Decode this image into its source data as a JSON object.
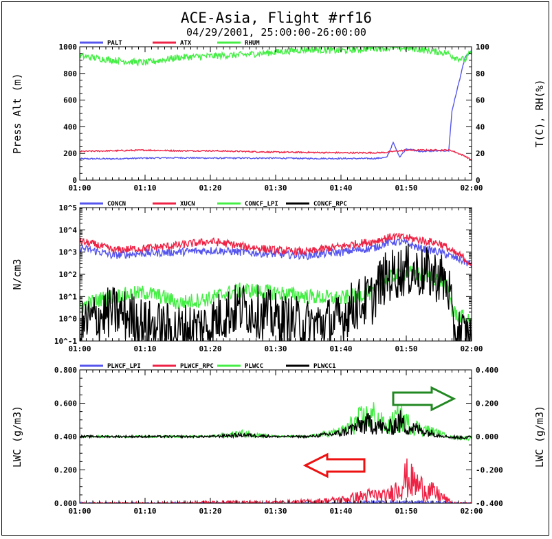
{
  "title": "ACE-Asia, Flight #rf16",
  "subtitle": "04/29/2001, 25:00:00-26:00:00",
  "colors": {
    "blue": "#5555ee",
    "red": "#ee2244",
    "green": "#44ee44",
    "black": "#000000",
    "arrow_green": "#228822",
    "arrow_red": "#ee1111"
  },
  "xticks": [
    "01:00",
    "01:10",
    "01:20",
    "01:30",
    "01:40",
    "01:50",
    "02:00"
  ],
  "chart_data": [
    {
      "type": "line",
      "ylabel": "Press Alt (m)",
      "y2label": "T(C), RH(%)",
      "ylim": [
        0,
        1000
      ],
      "y2lim": [
        0,
        100
      ],
      "yticks": [
        "0",
        "200",
        "400",
        "600",
        "800",
        "1000"
      ],
      "y2ticks": [
        "0",
        "20",
        "40",
        "60",
        "80",
        "100"
      ],
      "legend": [
        "PALT",
        "ATX",
        "RHUM"
      ],
      "x_minutes": [
        0,
        5,
        10,
        15,
        20,
        25,
        30,
        35,
        40,
        45,
        47,
        48,
        49,
        50,
        52,
        55,
        56.5,
        57,
        59,
        60
      ],
      "series": [
        {
          "name": "PALT",
          "axis": "left",
          "color": "#5555ee",
          "values": [
            160,
            160,
            165,
            168,
            165,
            165,
            165,
            162,
            162,
            162,
            170,
            280,
            175,
            235,
            215,
            220,
            220,
            520,
            920,
            970
          ]
        },
        {
          "name": "ATX",
          "axis": "right",
          "color": "#ee2244",
          "values": [
            21.5,
            22,
            22.5,
            22,
            22,
            21.5,
            21,
            20.8,
            20.5,
            20.5,
            20.8,
            21.5,
            22,
            22.5,
            22.5,
            22.5,
            22.5,
            22,
            18,
            15
          ]
        },
        {
          "name": "RHUM",
          "axis": "right",
          "color": "#44ee44",
          "values": [
            93,
            90,
            88,
            92,
            93,
            94,
            96,
            98,
            97,
            99,
            99,
            99,
            99,
            99,
            98,
            96,
            95,
            93,
            90,
            97
          ]
        }
      ]
    },
    {
      "type": "line",
      "ylabel": "N/cm3",
      "yscale": "log",
      "ylim": [
        0.1,
        100000
      ],
      "yticks": [
        "10^-1",
        "10^0",
        "10^1",
        "10^2",
        "10^3",
        "10^4",
        "10^5"
      ],
      "legend": [
        "CONCN",
        "XUCN",
        "CONCF_LPI",
        "CONCF_RPC"
      ],
      "x_minutes": [
        0,
        5,
        10,
        15,
        20,
        25,
        30,
        35,
        40,
        45,
        48,
        50,
        52,
        55,
        57,
        60
      ],
      "series": [
        {
          "name": "CONCN",
          "color": "#5555ee",
          "values": [
            1500,
            700,
            900,
            1000,
            1200,
            1000,
            800,
            700,
            1000,
            1500,
            3000,
            2500,
            1500,
            1000,
            600,
            250
          ]
        },
        {
          "name": "XUCN",
          "color": "#ee2244",
          "values": [
            3000,
            1200,
            1500,
            2000,
            3000,
            1800,
            1200,
            1000,
            1800,
            3000,
            5000,
            4500,
            3500,
            2500,
            1000,
            250
          ]
        },
        {
          "name": "CONCF_LPI",
          "color": "#44ee44",
          "values": [
            3,
            10,
            15,
            5,
            8,
            20,
            15,
            10,
            8,
            15,
            80,
            120,
            100,
            60,
            2,
            0.5
          ]
        },
        {
          "name": "CONCF_RPC",
          "color": "#000000",
          "values": [
            0.3,
            2,
            0.5,
            0.3,
            0.5,
            3,
            1,
            0.5,
            0.8,
            8,
            100,
            150,
            120,
            80,
            0.3,
            0.1
          ]
        }
      ]
    },
    {
      "type": "line",
      "ylabel": "LWC (g/m3)",
      "y2label": "LWC (g/m3)",
      "ylim": [
        0,
        0.8
      ],
      "y2lim": [
        -0.4,
        0.4
      ],
      "yticks": [
        "0.000",
        "0.200",
        "0.400",
        "0.600",
        "0.800"
      ],
      "y2ticks": [
        "-0.400",
        "-0.200",
        "0.000",
        "0.200",
        "0.400"
      ],
      "legend": [
        "PLWCF_LPI",
        "PLWCF_RPC",
        "PLWCC",
        "PLWCC1"
      ],
      "x_minutes": [
        0,
        10,
        20,
        25,
        30,
        35,
        40,
        43,
        45,
        47,
        49,
        50,
        52,
        55,
        57,
        60
      ],
      "series": [
        {
          "name": "PLWCF_LPI",
          "axis": "left",
          "color": "#5555ee",
          "values": [
            0,
            0,
            0,
            0,
            0,
            0,
            0,
            0.005,
            0.005,
            0.005,
            0.005,
            0.005,
            0.005,
            0.005,
            0,
            0
          ]
        },
        {
          "name": "PLWCF_RPC",
          "axis": "left",
          "color": "#ee2244",
          "values": [
            0,
            0,
            0.005,
            0.005,
            0.005,
            0.01,
            0.02,
            0.04,
            0.05,
            0.04,
            0.1,
            0.15,
            0.1,
            0.05,
            0,
            0
          ]
        },
        {
          "name": "PLWCC",
          "axis": "right",
          "color": "#44ee44",
          "values": [
            0,
            0,
            0,
            0.02,
            0,
            0,
            0.03,
            0.1,
            0.12,
            0.05,
            0.12,
            0.08,
            0.05,
            0.02,
            -0.005,
            -0.01
          ]
        },
        {
          "name": "PLWCC1",
          "axis": "right",
          "color": "#000000",
          "values": [
            0,
            0,
            0,
            0.01,
            0,
            0,
            0.02,
            0.07,
            0.08,
            0.04,
            0.09,
            0.06,
            0.04,
            0.01,
            -0.005,
            -0.005
          ]
        }
      ]
    }
  ]
}
